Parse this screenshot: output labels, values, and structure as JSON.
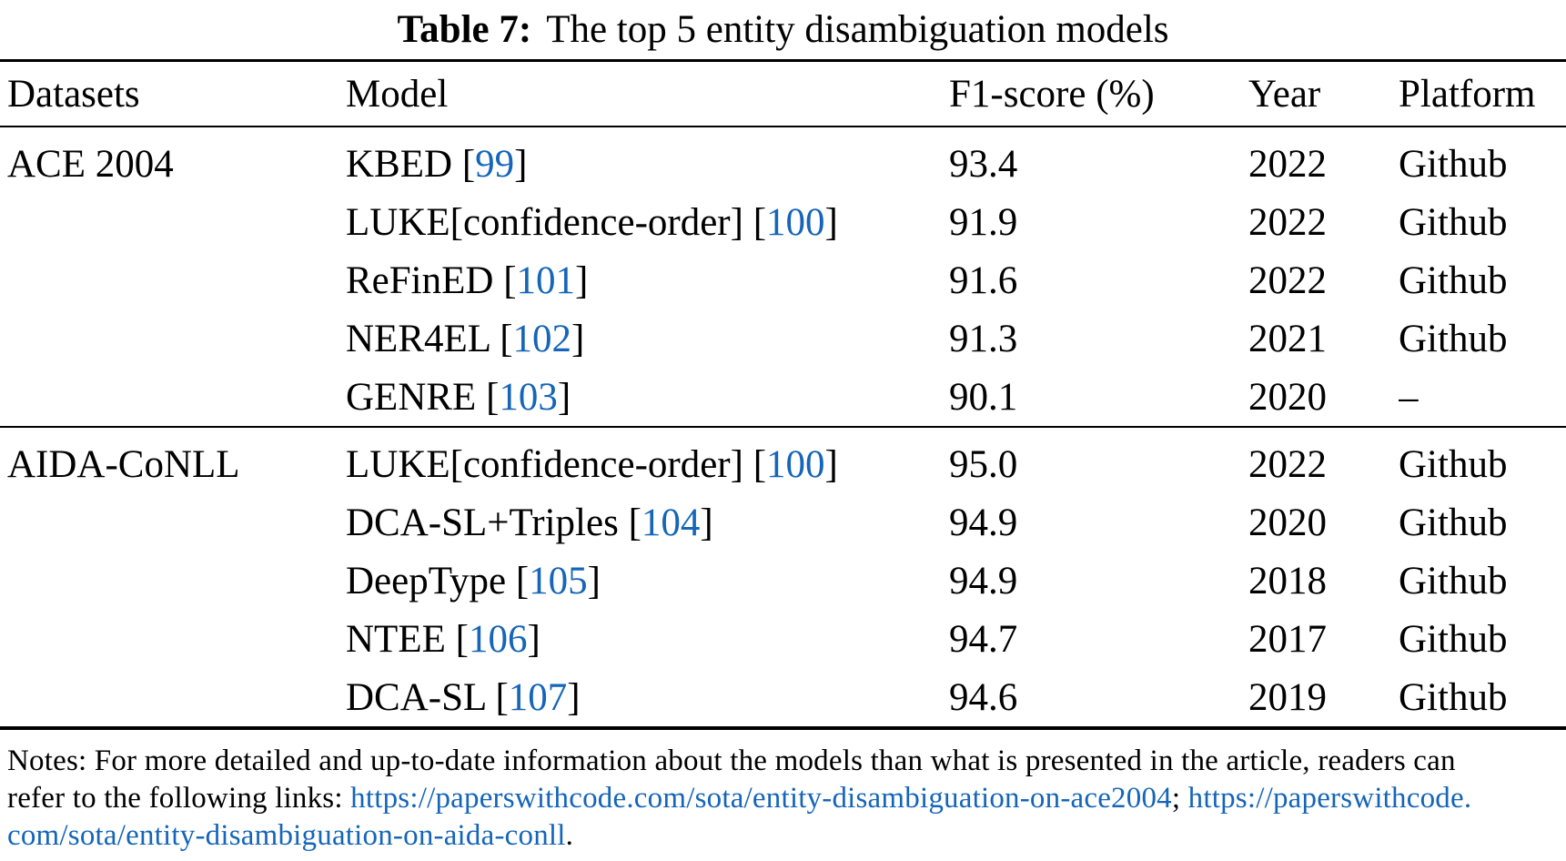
{
  "caption": {
    "label": "Table 7:",
    "title": "The top 5 entity disambiguation models"
  },
  "columns": [
    "Datasets",
    "Model",
    "F1-score (%)",
    "Year",
    "Platform"
  ],
  "colors": {
    "link_blue": "#1565b8",
    "text": "#000000"
  },
  "cite_open": " [",
  "cite_close": "]",
  "table": {
    "groups": [
      {
        "dataset": "ACE 2004",
        "rows": [
          {
            "name": "KBED",
            "cite": "99",
            "f1": "93.4",
            "year": "2022",
            "platform": "Github"
          },
          {
            "name": "LUKE[confidence-order]",
            "cite": "100",
            "f1": "91.9",
            "year": "2022",
            "platform": "Github"
          },
          {
            "name": "ReFinED",
            "cite": "101",
            "f1": "91.6",
            "year": "2022",
            "platform": "Github"
          },
          {
            "name": "NER4EL",
            "cite": "102",
            "f1": "91.3",
            "year": "2021",
            "platform": "Github"
          },
          {
            "name": "GENRE",
            "cite": "103",
            "f1": "90.1",
            "year": "2020",
            "platform": "–"
          }
        ]
      },
      {
        "dataset": "AIDA-CoNLL",
        "rows": [
          {
            "name": "LUKE[confidence-order]",
            "cite": "100",
            "f1": "95.0",
            "year": "2022",
            "platform": "Github"
          },
          {
            "name": "DCA-SL+Triples",
            "cite": "104",
            "f1": "94.9",
            "year": "2020",
            "platform": "Github"
          },
          {
            "name": "DeepType",
            "cite": "105",
            "f1": "94.9",
            "year": "2018",
            "platform": "Github"
          },
          {
            "name": "NTEE",
            "cite": "106",
            "f1": "94.7",
            "year": "2017",
            "platform": "Github"
          },
          {
            "name": "DCA-SL",
            "cite": "107",
            "f1": "94.6",
            "year": "2019",
            "platform": "Github"
          }
        ]
      }
    ]
  },
  "notes": {
    "segments": [
      {
        "style": "text",
        "text": "Notes: For more detailed and up-to-date information about the models than what is presented in the article, readers can"
      },
      {
        "style": "break"
      },
      {
        "style": "text",
        "text": "refer to the following links: "
      },
      {
        "style": "link",
        "text": "https://paperswithcode.com/sota/entity-disambiguation-on-ace2004"
      },
      {
        "style": "text",
        "text": "; "
      },
      {
        "style": "link",
        "text": "https://paperswithcode."
      },
      {
        "style": "break"
      },
      {
        "style": "link",
        "text": "com/sota/entity-disambiguation-on-aida-conll"
      },
      {
        "style": "text",
        "text": "."
      }
    ]
  }
}
